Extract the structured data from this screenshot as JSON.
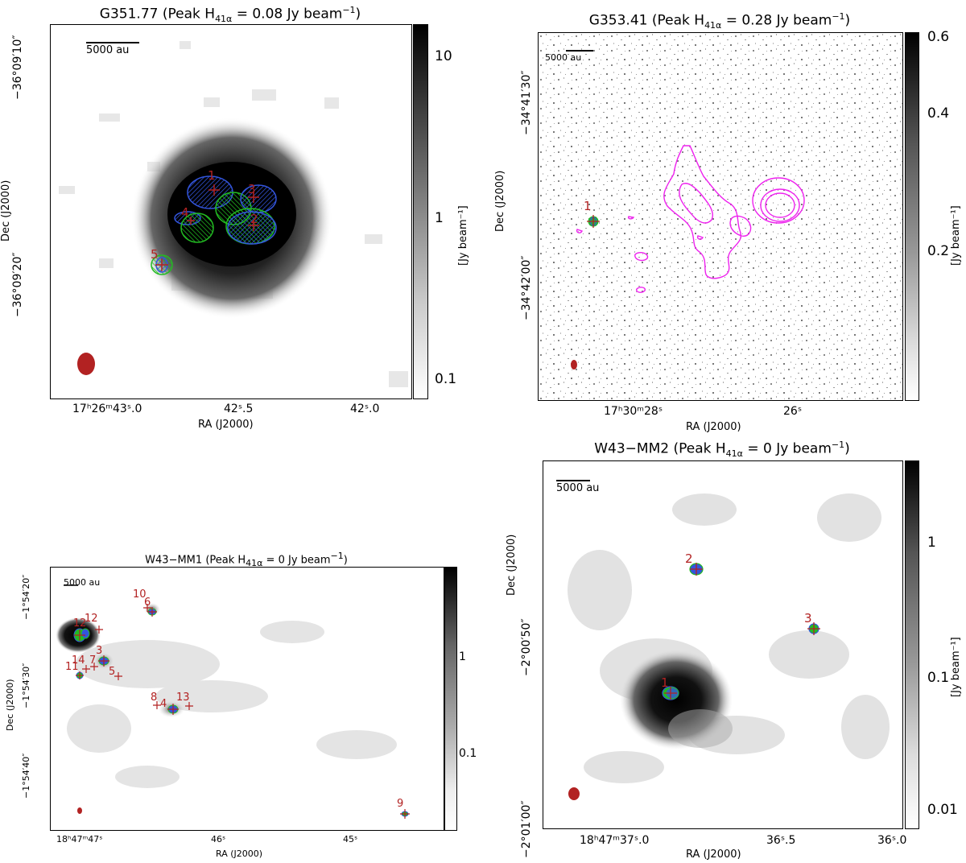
{
  "figure": {
    "panels": [
      {
        "id": "g35177",
        "field": "G351.77",
        "peak_label": "(Peak H",
        "peak_sub": "41α",
        "peak_value": " = 0.08 Jy beam",
        "peak_sup": "−1",
        "title_close": ")",
        "scale_bar": "5000 au",
        "xlabel": "RA (J2000)",
        "ylabel": "Dec (J2000)",
        "xticks": [
          "17h26m43.0s",
          "42.5s",
          "42.0s"
        ],
        "xtick_text": [
          "17ʰ26ᵐ43ˢ.0",
          "42ˢ.5",
          "42ˢ.0"
        ],
        "yticks": [
          "−36°09′10″",
          "−36°09′20″"
        ],
        "colorbar_label": "[Jy beam⁻¹]",
        "colorbar_ticks": [
          "10",
          "1",
          "0.1"
        ],
        "sources": [
          "1",
          "2",
          "3",
          "4",
          "5"
        ]
      },
      {
        "id": "g35341",
        "field": "G353.41",
        "peak_label": "(Peak H",
        "peak_sub": "41α",
        "peak_value": " = 0.28 Jy beam",
        "peak_sup": "−1",
        "title_close": ")",
        "scale_bar": "5000 au",
        "xlabel": "RA (J2000)",
        "ylabel": "Dec (J2000)",
        "xtick_text": [
          "17ʰ30ᵐ28ˢ",
          "26ˢ"
        ],
        "yticks": [
          "−34°41′30″",
          "−34°42′00″"
        ],
        "colorbar_label": "[Jy beam⁻¹]",
        "colorbar_ticks": [
          "0.6",
          "0.4",
          "0.2"
        ],
        "sources": [
          "1"
        ]
      },
      {
        "id": "w43mm1",
        "field": "W43−MM1",
        "peak_label": "(Peak H",
        "peak_sub": "41α",
        "peak_value": " = 0 Jy beam",
        "peak_sup": "−1",
        "title_close": ")",
        "scale_bar": "5000 au",
        "xlabel": "RA (J2000)",
        "ylabel": "Dec (J2000)",
        "xtick_text": [
          "18ʰ47ᵐ47ˢ",
          "46ˢ",
          "45ˢ"
        ],
        "yticks": [
          "−1°54′20″",
          "−1°54′30″",
          "−1°54′40″"
        ],
        "colorbar_ticks": [
          "1",
          "0.1"
        ],
        "sources": [
          "1",
          "2",
          "3",
          "4",
          "5",
          "6",
          "7",
          "8",
          "9",
          "10",
          "11",
          "12",
          "13",
          "14"
        ]
      },
      {
        "id": "w43mm2",
        "field": "W43−MM2",
        "peak_label": "(Peak H",
        "peak_sub": "41α",
        "peak_value": " = 0 Jy beam",
        "peak_sup": "−1",
        "title_close": ")",
        "scale_bar": "5000 au",
        "xlabel": "RA (J2000)",
        "ylabel": "Dec (J2000)",
        "xtick_text": [
          "18ʰ47ᵐ37ˢ.0",
          "36ˢ.5",
          "36ˢ.0"
        ],
        "yticks": [
          "−2°00′50″",
          "−2°01′00″"
        ],
        "colorbar_label": "[Jy beam⁻¹]",
        "colorbar_ticks": [
          "1",
          "0.1",
          "0.01"
        ],
        "sources": [
          "1",
          "2",
          "3"
        ]
      }
    ],
    "colors": {
      "source_label": "#b22222",
      "beam": "#b22222",
      "ellipse_blue": "#3355dd",
      "ellipse_green": "#22bb22",
      "contour": "#ee22ee"
    }
  }
}
